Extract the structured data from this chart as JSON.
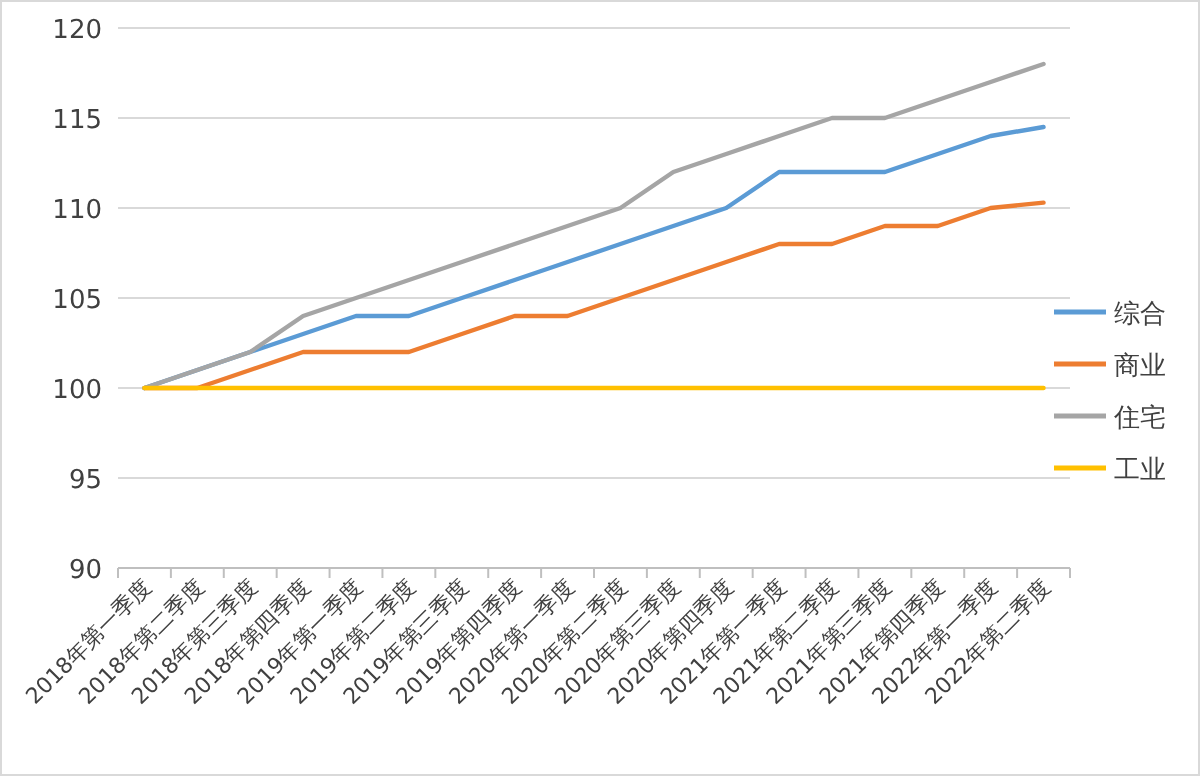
{
  "chart_data": {
    "type": "line",
    "categories": [
      "2018年第一季度",
      "2018年第二季度",
      "2018年第三季度",
      "2018年第四季度",
      "2019年第一季度",
      "2019年第二季度",
      "2019年第三季度",
      "2019年第四季度",
      "2020年第一季度",
      "2020年第二季度",
      "2020年第三季度",
      "2020年第四季度",
      "2021年第一季度",
      "2021年第二季度",
      "2021年第三季度",
      "2021年第四季度",
      "2022年第一季度",
      "2022年第二季度"
    ],
    "series": [
      {
        "name": "综合",
        "color": "#5b9bd5",
        "values": [
          100,
          101,
          102,
          103,
          104,
          104,
          105,
          106,
          107,
          108,
          109,
          110,
          112,
          112,
          112,
          113,
          114,
          114.5
        ]
      },
      {
        "name": "商业",
        "color": "#ed7d31",
        "values": [
          100,
          100,
          101,
          102,
          102,
          102,
          103,
          104,
          104,
          105,
          106,
          107,
          108,
          108,
          109,
          109,
          110,
          110.3
        ]
      },
      {
        "name": "住宅",
        "color": "#a5a5a5",
        "values": [
          100,
          101,
          102,
          104,
          105,
          106,
          107,
          108,
          109,
          110,
          112,
          113,
          114,
          115,
          115,
          116,
          117,
          118
        ]
      },
      {
        "name": "工业",
        "color": "#ffc000",
        "values": [
          100,
          100,
          100,
          100,
          100,
          100,
          100,
          100,
          100,
          100,
          100,
          100,
          100,
          100,
          100,
          100,
          100,
          100
        ]
      }
    ],
    "ylim": [
      90,
      120
    ],
    "yticks": [
      90,
      95,
      100,
      105,
      110,
      115,
      120
    ],
    "grid": "y",
    "legend": "right",
    "marker": "none",
    "line_style": "solid"
  }
}
